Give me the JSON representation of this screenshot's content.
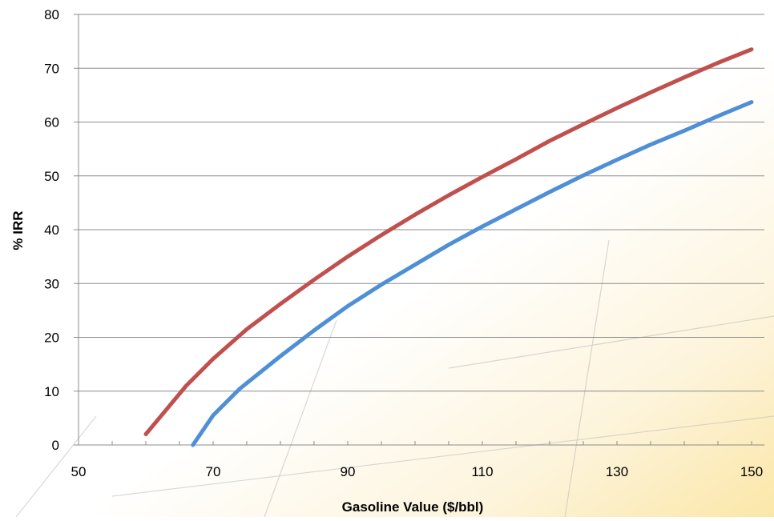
{
  "chart_data": {
    "type": "line",
    "title": "",
    "xlabel": "Gasoline Value ($/bbl)",
    "ylabel": "% IRR",
    "xlim": [
      50,
      150
    ],
    "ylim": [
      0,
      80
    ],
    "x_ticks": [
      50,
      70,
      90,
      110,
      130,
      150
    ],
    "y_ticks": [
      0,
      10,
      20,
      30,
      40,
      50,
      60,
      70,
      80
    ],
    "grid": "horizontal",
    "legend": "none",
    "series": [
      {
        "color": "#c0504d",
        "x": [
          60,
          63,
          66,
          70,
          75,
          80,
          85,
          90,
          95,
          100,
          105,
          110,
          115,
          120,
          125,
          130,
          135,
          140,
          145,
          150
        ],
        "y": [
          2,
          6.5,
          11,
          16,
          21.5,
          26.2,
          30.7,
          35,
          39,
          42.8,
          46.4,
          49.8,
          53.1,
          56.5,
          59.6,
          62.6,
          65.5,
          68.3,
          71,
          73.5
        ]
      },
      {
        "color": "#4f8fd6",
        "x": [
          67,
          70,
          74,
          80,
          85,
          90,
          95,
          100,
          105,
          110,
          115,
          120,
          125,
          130,
          135,
          140,
          145,
          150
        ],
        "y": [
          0,
          5.5,
          10.5,
          16.5,
          21.3,
          25.8,
          29.8,
          33.5,
          37.2,
          40.6,
          43.8,
          47,
          50.1,
          53,
          55.8,
          58.4,
          61.1,
          63.7
        ]
      }
    ]
  }
}
